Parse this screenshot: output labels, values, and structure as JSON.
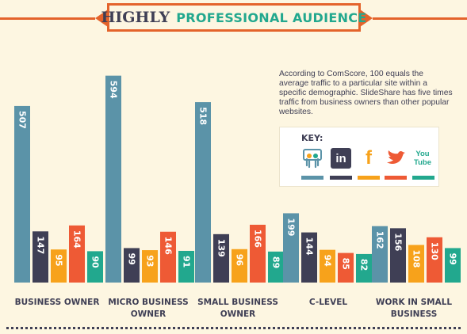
{
  "title": {
    "part1": "HIGHLY",
    "part2": "PROFESSIONAL AUDIENCE"
  },
  "description": "According to ComScore, 100 equals the average traffic to a particular site within a specific demographic. SlideShare has five times traffic from business owners than other popular websites.",
  "key": {
    "label": "KEY:",
    "items": [
      {
        "icon": "slideshare-icon",
        "color": "#5b93a8",
        "glyph": ""
      },
      {
        "icon": "linkedin-icon",
        "color": "#3f3f55",
        "glyph": "in"
      },
      {
        "icon": "facebook-icon",
        "color": "#f7a21b",
        "glyph": "f"
      },
      {
        "icon": "twitter-icon",
        "color": "#ee5a35",
        "glyph": ""
      },
      {
        "icon": "youtube-icon",
        "color": "#22a88e",
        "glyph": "You Tube"
      }
    ]
  },
  "chart_data": {
    "type": "bar",
    "categories": [
      "BUSINESS OWNER",
      "MICRO BUSINESS OWNER",
      "SMALL BUSINESS OWNER",
      "C-LEVEL",
      "WORK IN SMALL BUSINESS"
    ],
    "series": [
      {
        "values": [
          507,
          594,
          518,
          199,
          162
        ],
        "color": "#5b93a8"
      },
      {
        "values": [
          147,
          99,
          139,
          144,
          156
        ],
        "color": "#3f3f55"
      },
      {
        "values": [
          95,
          93,
          96,
          94,
          108
        ],
        "color": "#f7a21b"
      },
      {
        "values": [
          164,
          146,
          166,
          85,
          130
        ],
        "color": "#ee5a35"
      },
      {
        "values": [
          90,
          91,
          89,
          82,
          99
        ],
        "color": "#22a88e"
      }
    ],
    "ylim": [
      0,
      600
    ],
    "data_labels": true,
    "legend": "top-right",
    "grid": false
  }
}
